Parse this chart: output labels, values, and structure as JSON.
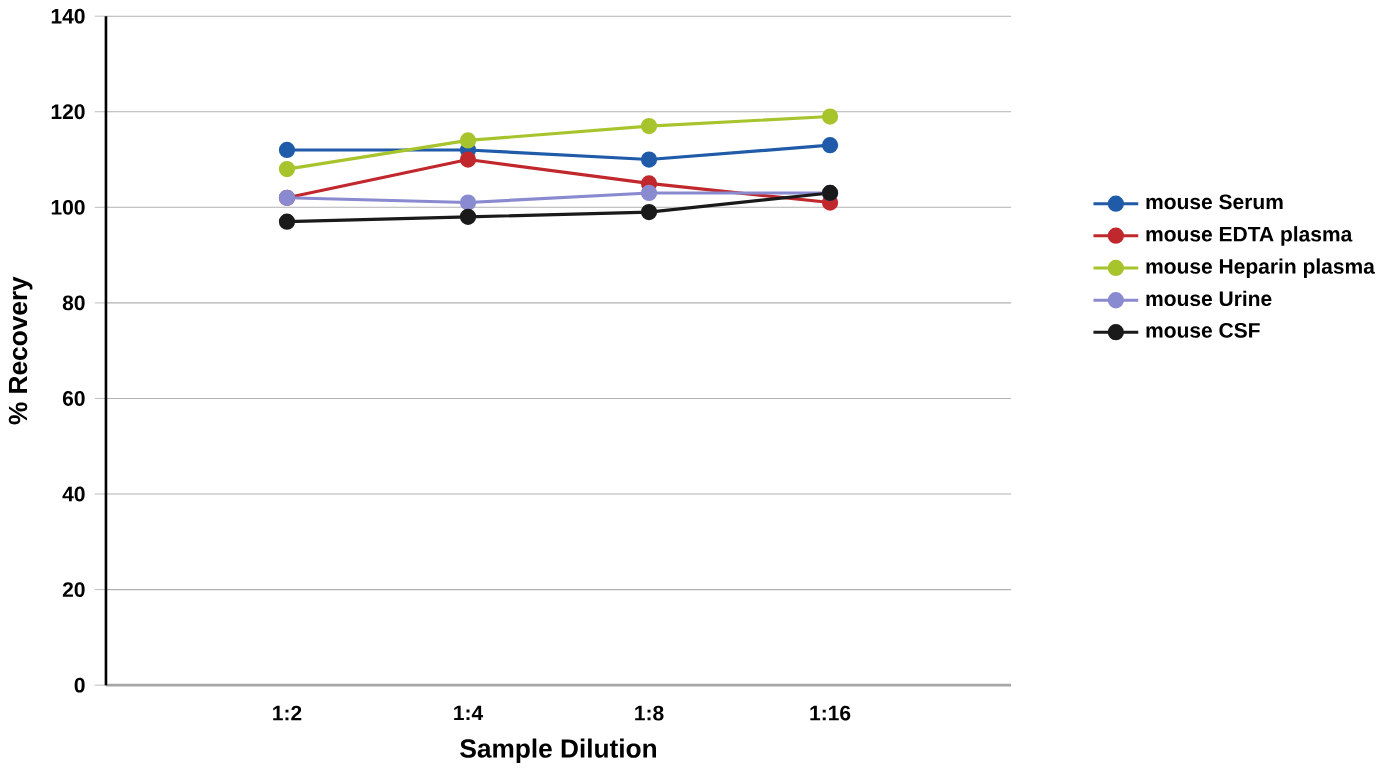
{
  "chart_data": {
    "type": "line",
    "xlabel": "Sample Dilution",
    "ylabel": "% Recovery",
    "categories": [
      "1:2",
      "1:4",
      "1:8",
      "1:16"
    ],
    "series": [
      {
        "name": "mouse Serum",
        "color": "#1f5ba8",
        "values": [
          112,
          112,
          110,
          113
        ]
      },
      {
        "name": "mouse EDTA plasma",
        "color": "#c0282d",
        "values": [
          102,
          110,
          105,
          101
        ]
      },
      {
        "name": "mouse Heparin plasma",
        "color": "#a8c42c",
        "values": [
          108,
          114,
          117,
          119
        ]
      },
      {
        "name": "mouse Urine",
        "color": "#8a8ad0",
        "values": [
          102,
          101,
          103,
          103
        ]
      },
      {
        "name": "mouse CSF",
        "color": "#1a1a1a",
        "values": [
          97,
          98,
          99,
          103
        ]
      }
    ],
    "ylim": [
      0,
      140
    ],
    "yticks": [
      0,
      20,
      40,
      60,
      80,
      100,
      120,
      140
    ],
    "grid": "y",
    "legend": "right",
    "marker": "circle",
    "line_style": "solid"
  }
}
